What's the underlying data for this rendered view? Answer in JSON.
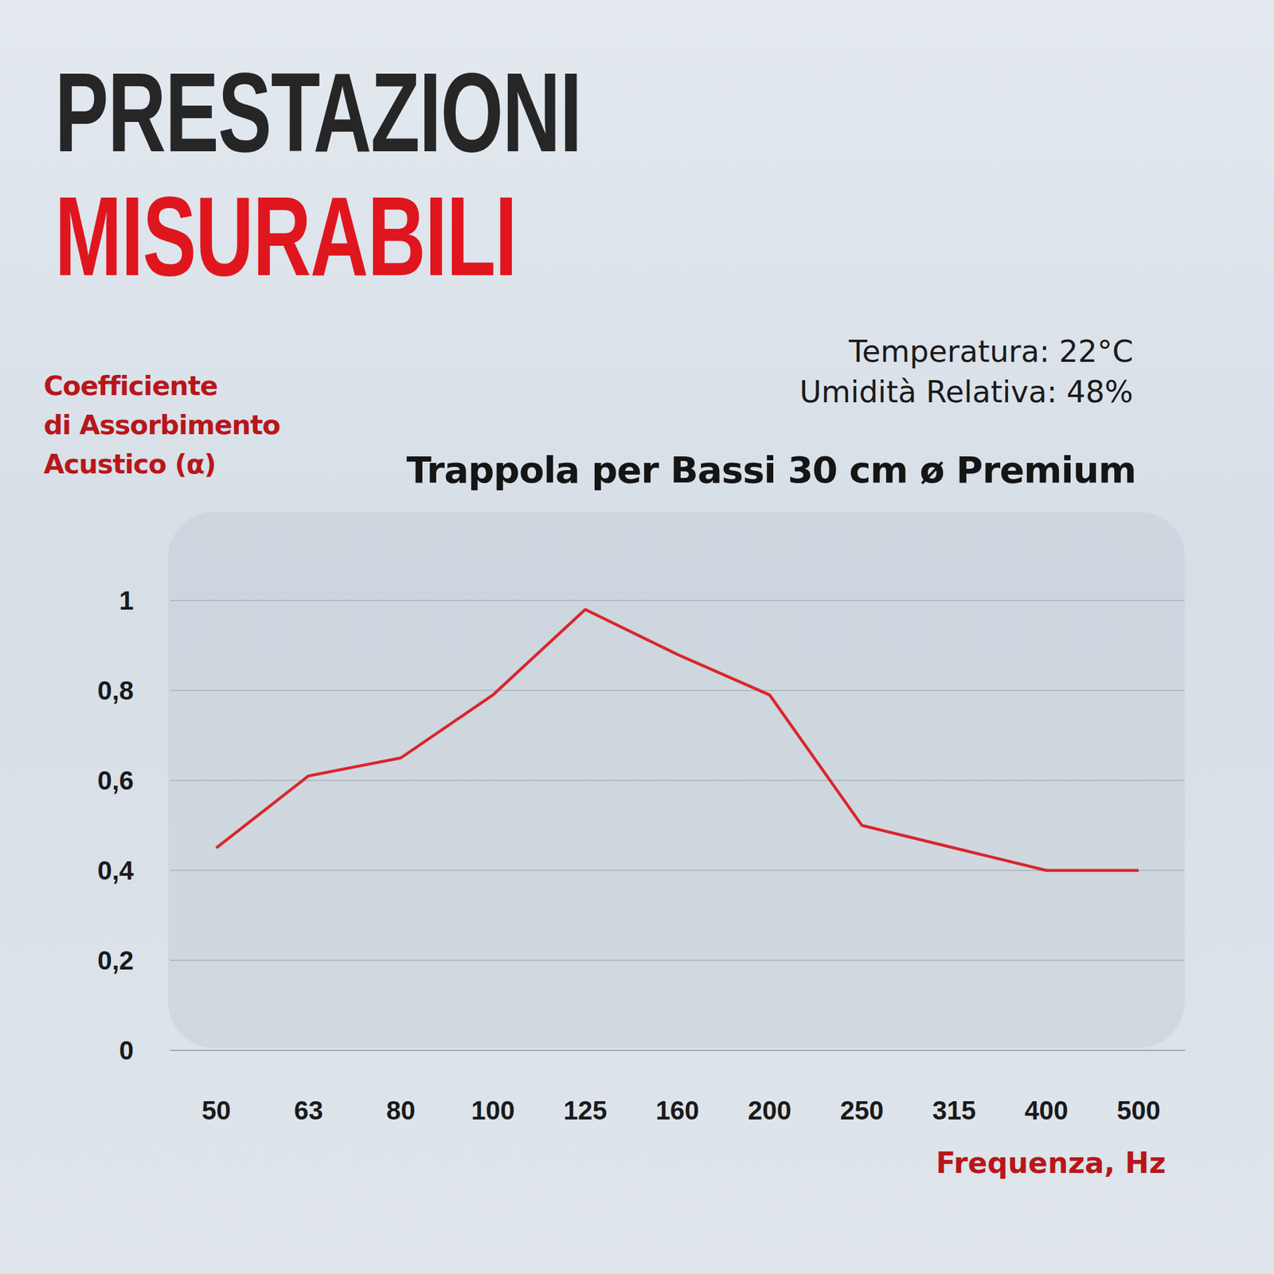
{
  "header": {
    "title": [
      "PRESTAZIONI",
      "MISURABILI"
    ]
  },
  "annotations": [
    "Temperatura: 22°C",
    "Umidità Relativa: 48%"
  ],
  "chart_data": {
    "type": "line",
    "title": "Trappola per Bassi 30 cm ø Premium",
    "y_label": "Coefficiente\ndi Assorbimento\nAcustico (α)",
    "x_label": "Frequenza, Hz",
    "categories": [
      "50",
      "63",
      "80",
      "100",
      "125",
      "160",
      "200",
      "250",
      "315",
      "400",
      "500"
    ],
    "values": [
      0.45,
      0.61,
      0.65,
      0.79,
      0.98,
      0.88,
      0.79,
      0.5,
      0.45,
      0.4,
      0.4
    ],
    "color": "#d9262c",
    "ylim": [
      0,
      1
    ],
    "yticks": [
      0,
      {
        "value": 0.2,
        "label": "0,2"
      },
      {
        "value": 0.4,
        "label": "0,4"
      },
      {
        "value": 0.6,
        "label": "0,6"
      },
      {
        "value": 0.8,
        "label": "0,8"
      },
      1
    ],
    "grid": true
  }
}
